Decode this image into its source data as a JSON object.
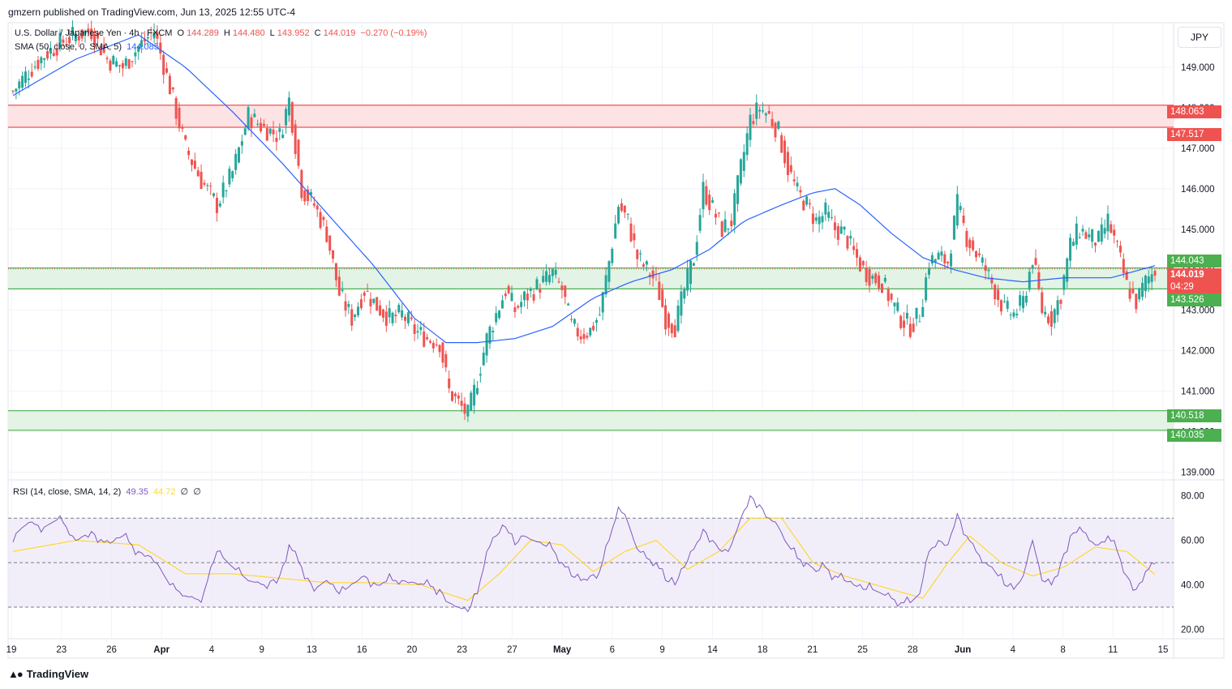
{
  "header": {
    "published_text": "gmzern published on TradingView.com, Jun 13, 2025 12:55 UTC-4"
  },
  "legend": {
    "main_symbol": "U.S. Dollar / Japanese Yen · 4h · FXCM",
    "open_label": "O",
    "open_value": "144.289",
    "high_label": "H",
    "high_value": "144.480",
    "low_label": "L",
    "low_value": "143.952",
    "close_label": "C",
    "close_value": "144.019",
    "change": "−0.270 (−0.19%)",
    "sma_label": "SMA (50, close, 0, SMA, 5)",
    "sma_value": "144.085",
    "rsi_label": "RSI (14, close, SMA, 14, 2)",
    "rsi_value": "49.35",
    "rsi_ma_value": "44.72",
    "rsi_extra1": "∅",
    "rsi_extra2": "∅"
  },
  "currency": "JPY",
  "price_labels": {
    "res_top": "148.063",
    "res_bottom": "147.517",
    "mid_top": "144.043",
    "current": "144.019",
    "countdown": "04:29",
    "mid_bottom": "143.526",
    "sup_top": "140.518",
    "sup_bottom": "140.035"
  },
  "footer": {
    "brand": "TradingView"
  },
  "colors": {
    "up": "#26a69a",
    "down": "#ef5350",
    "sma": "#2962ff",
    "rsi": "#7e57c2",
    "rsi_ma": "#fdd835",
    "resistance_fill": "#fde3e4",
    "support_fill": "#e3f3e5"
  },
  "chart_data": {
    "type": "candlestick",
    "title": "U.S. Dollar / Japanese Yen · 4h · FXCM",
    "ylim": [
      138.85,
      150.1
    ],
    "y_ticks": [
      "139.000",
      "140.000",
      "141.000",
      "142.000",
      "143.000",
      "144.000",
      "145.000",
      "146.000",
      "147.000",
      "148.000",
      "149.000"
    ],
    "x_ticks": [
      "19",
      "23",
      "26",
      "Apr",
      "4",
      "9",
      "13",
      "16",
      "20",
      "23",
      "27",
      "May",
      "6",
      "9",
      "14",
      "18",
      "21",
      "25",
      "28",
      "Jun",
      "4",
      "8",
      "11",
      "15"
    ],
    "zones": [
      {
        "name": "resistance",
        "from": 147.517,
        "to": 148.063
      },
      {
        "name": "pivot",
        "from": 143.526,
        "to": 144.043
      },
      {
        "name": "support",
        "from": 140.035,
        "to": 140.518
      }
    ],
    "close_path": [
      [
        0,
        148.4
      ],
      [
        5,
        148.9
      ],
      [
        10,
        149.3
      ],
      [
        15,
        149.6
      ],
      [
        20,
        149.8
      ],
      [
        25,
        149.9
      ],
      [
        30,
        149.2
      ],
      [
        35,
        149.0
      ],
      [
        40,
        149.5
      ],
      [
        45,
        149.9
      ],
      [
        50,
        148.5
      ],
      [
        55,
        147.0
      ],
      [
        60,
        146.2
      ],
      [
        65,
        145.6
      ],
      [
        70,
        146.4
      ],
      [
        75,
        147.8
      ],
      [
        80,
        147.5
      ],
      [
        85,
        147.3
      ],
      [
        88,
        148.2
      ],
      [
        92,
        146.0
      ],
      [
        96,
        145.6
      ],
      [
        100,
        144.9
      ],
      [
        104,
        143.4
      ],
      [
        108,
        142.8
      ],
      [
        112,
        143.5
      ],
      [
        116,
        143.1
      ],
      [
        120,
        142.8
      ],
      [
        124,
        142.9
      ],
      [
        128,
        142.5
      ],
      [
        132,
        142.3
      ],
      [
        136,
        142.2
      ],
      [
        139,
        141.0
      ],
      [
        142,
        140.7
      ],
      [
        145,
        140.4
      ],
      [
        148,
        141.3
      ],
      [
        151,
        142.3
      ],
      [
        154,
        142.9
      ],
      [
        157,
        143.5
      ],
      [
        160,
        143.0
      ],
      [
        163,
        143.3
      ],
      [
        166,
        143.5
      ],
      [
        169,
        143.7
      ],
      [
        172,
        143.9
      ],
      [
        175,
        143.5
      ],
      [
        178,
        142.6
      ],
      [
        181,
        142.4
      ],
      [
        184,
        142.5
      ],
      [
        187,
        142.9
      ],
      [
        190,
        144.2
      ],
      [
        193,
        145.6
      ],
      [
        196,
        145.2
      ],
      [
        199,
        144.3
      ],
      [
        202,
        144.0
      ],
      [
        205,
        143.7
      ],
      [
        208,
        142.8
      ],
      [
        211,
        142.6
      ],
      [
        214,
        143.5
      ],
      [
        217,
        144.3
      ],
      [
        220,
        146.0
      ],
      [
        223,
        145.5
      ],
      [
        226,
        145.0
      ],
      [
        229,
        145.2
      ],
      [
        232,
        146.5
      ],
      [
        235,
        147.7
      ],
      [
        238,
        148.0
      ],
      [
        241,
        147.8
      ],
      [
        244,
        147.4
      ],
      [
        247,
        146.5
      ],
      [
        250,
        145.9
      ],
      [
        253,
        145.6
      ],
      [
        256,
        145.2
      ],
      [
        259,
        145.4
      ],
      [
        262,
        145.0
      ],
      [
        265,
        144.9
      ],
      [
        268,
        144.4
      ],
      [
        271,
        144.0
      ],
      [
        274,
        143.8
      ],
      [
        277,
        143.7
      ],
      [
        280,
        143.2
      ],
      [
        283,
        142.8
      ],
      [
        286,
        142.6
      ],
      [
        289,
        142.9
      ],
      [
        292,
        144.2
      ],
      [
        295,
        144.3
      ],
      [
        298,
        144.2
      ],
      [
        301,
        145.6
      ],
      [
        304,
        144.8
      ],
      [
        307,
        144.4
      ],
      [
        310,
        144.0
      ],
      [
        313,
        143.5
      ],
      [
        316,
        143.0
      ],
      [
        319,
        142.9
      ],
      [
        322,
        143.2
      ],
      [
        325,
        144.3
      ],
      [
        328,
        143.0
      ],
      [
        331,
        142.8
      ],
      [
        334,
        143.4
      ],
      [
        337,
        144.6
      ],
      [
        340,
        145.0
      ],
      [
        343,
        144.8
      ],
      [
        346,
        144.7
      ],
      [
        349,
        145.2
      ],
      [
        352,
        144.5
      ],
      [
        355,
        143.6
      ],
      [
        358,
        143.2
      ],
      [
        361,
        143.7
      ],
      [
        364,
        144.0
      ]
    ],
    "sma_path": [
      [
        0,
        148.3
      ],
      [
        20,
        149.2
      ],
      [
        40,
        149.8
      ],
      [
        55,
        149.0
      ],
      [
        70,
        147.9
      ],
      [
        85,
        146.7
      ],
      [
        100,
        145.4
      ],
      [
        115,
        144.1
      ],
      [
        128,
        142.8
      ],
      [
        138,
        142.2
      ],
      [
        148,
        142.2
      ],
      [
        160,
        142.3
      ],
      [
        172,
        142.6
      ],
      [
        185,
        143.3
      ],
      [
        197,
        143.7
      ],
      [
        210,
        144.0
      ],
      [
        222,
        144.5
      ],
      [
        233,
        145.2
      ],
      [
        245,
        145.6
      ],
      [
        255,
        145.9
      ],
      [
        262,
        146.0
      ],
      [
        270,
        145.6
      ],
      [
        280,
        144.9
      ],
      [
        290,
        144.3
      ],
      [
        300,
        144.0
      ],
      [
        310,
        143.8
      ],
      [
        322,
        143.7
      ],
      [
        335,
        143.8
      ],
      [
        350,
        143.8
      ],
      [
        364,
        144.1
      ]
    ],
    "rsi": {
      "ylim": [
        18,
        85
      ],
      "overbought": 70,
      "middle": 50,
      "oversold": 30,
      "y_ticks": [
        "20.00",
        "40.00",
        "60.00",
        "80.00"
      ],
      "values_path": [
        [
          0,
          62
        ],
        [
          5,
          68
        ],
        [
          10,
          66
        ],
        [
          15,
          70
        ],
        [
          20,
          60
        ],
        [
          25,
          64
        ],
        [
          30,
          58
        ],
        [
          35,
          62
        ],
        [
          40,
          55
        ],
        [
          45,
          52
        ],
        [
          50,
          40
        ],
        [
          55,
          35
        ],
        [
          60,
          33
        ],
        [
          65,
          55
        ],
        [
          70,
          48
        ],
        [
          75,
          42
        ],
        [
          80,
          40
        ],
        [
          85,
          44
        ],
        [
          88,
          58
        ],
        [
          92,
          48
        ],
        [
          96,
          38
        ],
        [
          100,
          42
        ],
        [
          104,
          36
        ],
        [
          108,
          40
        ],
        [
          112,
          44
        ],
        [
          116,
          40
        ],
        [
          120,
          42
        ],
        [
          124,
          42
        ],
        [
          128,
          41
        ],
        [
          132,
          40
        ],
        [
          136,
          38
        ],
        [
          139,
          32
        ],
        [
          142,
          30
        ],
        [
          145,
          28
        ],
        [
          148,
          36
        ],
        [
          151,
          55
        ],
        [
          154,
          62
        ],
        [
          157,
          66
        ],
        [
          160,
          58
        ],
        [
          163,
          62
        ],
        [
          166,
          60
        ],
        [
          169,
          58
        ],
        [
          172,
          56
        ],
        [
          175,
          50
        ],
        [
          178,
          44
        ],
        [
          181,
          42
        ],
        [
          184,
          44
        ],
        [
          187,
          46
        ],
        [
          190,
          60
        ],
        [
          193,
          75
        ],
        [
          196,
          68
        ],
        [
          199,
          56
        ],
        [
          202,
          52
        ],
        [
          205,
          50
        ],
        [
          208,
          42
        ],
        [
          211,
          40
        ],
        [
          214,
          48
        ],
        [
          217,
          56
        ],
        [
          220,
          65
        ],
        [
          223,
          60
        ],
        [
          226,
          55
        ],
        [
          229,
          58
        ],
        [
          232,
          70
        ],
        [
          235,
          80
        ],
        [
          238,
          76
        ],
        [
          241,
          70
        ],
        [
          244,
          66
        ],
        [
          247,
          58
        ],
        [
          250,
          52
        ],
        [
          253,
          50
        ],
        [
          256,
          46
        ],
        [
          259,
          48
        ],
        [
          262,
          44
        ],
        [
          265,
          42
        ],
        [
          268,
          40
        ],
        [
          271,
          38
        ],
        [
          274,
          38
        ],
        [
          277,
          36
        ],
        [
          280,
          34
        ],
        [
          283,
          32
        ],
        [
          286,
          32
        ],
        [
          289,
          36
        ],
        [
          292,
          55
        ],
        [
          295,
          60
        ],
        [
          298,
          58
        ],
        [
          301,
          72
        ],
        [
          304,
          62
        ],
        [
          307,
          55
        ],
        [
          310,
          50
        ],
        [
          313,
          46
        ],
        [
          316,
          40
        ],
        [
          319,
          38
        ],
        [
          322,
          44
        ],
        [
          325,
          60
        ],
        [
          328,
          42
        ],
        [
          331,
          40
        ],
        [
          334,
          50
        ],
        [
          337,
          62
        ],
        [
          340,
          66
        ],
        [
          343,
          60
        ],
        [
          346,
          58
        ],
        [
          349,
          62
        ],
        [
          352,
          55
        ],
        [
          355,
          44
        ],
        [
          358,
          38
        ],
        [
          361,
          46
        ],
        [
          364,
          49.35
        ]
      ],
      "ma_path": [
        [
          0,
          55
        ],
        [
          20,
          60
        ],
        [
          40,
          58
        ],
        [
          55,
          45
        ],
        [
          70,
          45
        ],
        [
          85,
          43
        ],
        [
          100,
          41
        ],
        [
          115,
          41
        ],
        [
          130,
          40
        ],
        [
          145,
          33
        ],
        [
          155,
          45
        ],
        [
          165,
          60
        ],
        [
          175,
          58
        ],
        [
          185,
          46
        ],
        [
          195,
          55
        ],
        [
          205,
          60
        ],
        [
          215,
          47
        ],
        [
          225,
          55
        ],
        [
          235,
          70
        ],
        [
          245,
          70
        ],
        [
          255,
          50
        ],
        [
          265,
          44
        ],
        [
          280,
          38
        ],
        [
          290,
          34
        ],
        [
          298,
          50
        ],
        [
          305,
          62
        ],
        [
          315,
          50
        ],
        [
          325,
          44
        ],
        [
          335,
          48
        ],
        [
          345,
          57
        ],
        [
          355,
          55
        ],
        [
          364,
          44.72
        ]
      ]
    }
  }
}
